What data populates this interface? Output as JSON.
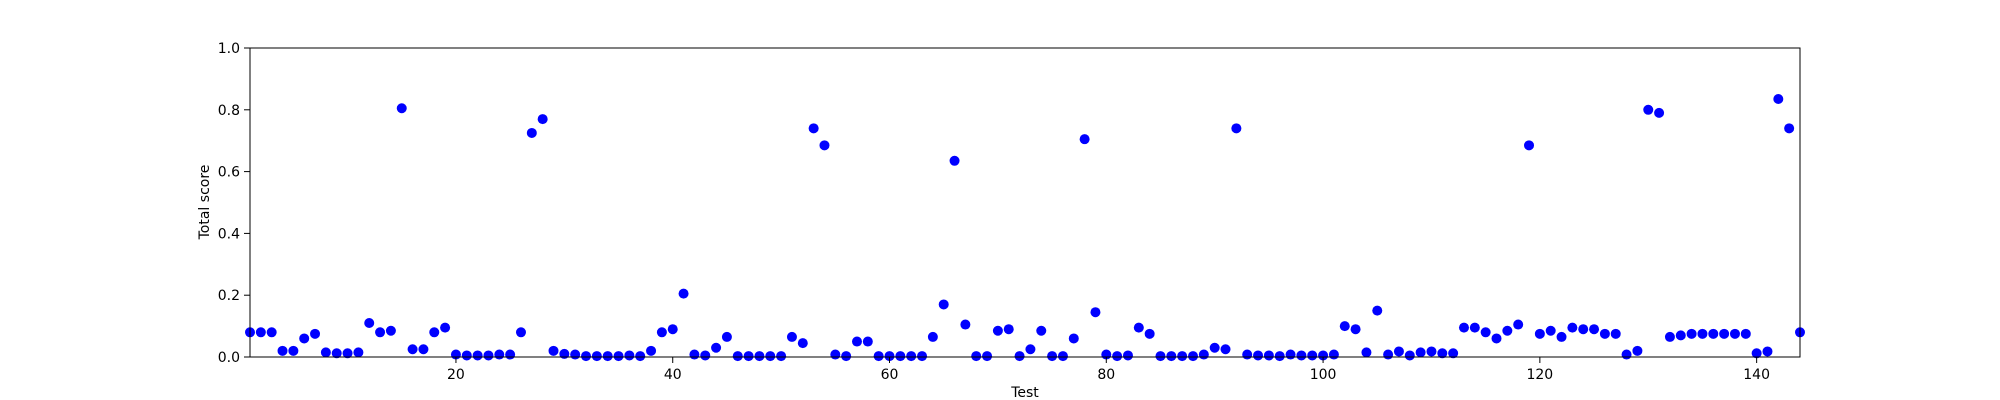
{
  "chart_data": {
    "type": "scatter",
    "title": "",
    "xlabel": "Test",
    "ylabel": "Total score",
    "xlim": [
      1,
      144
    ],
    "ylim": [
      0.0,
      1.0
    ],
    "xticks": [
      20,
      40,
      60,
      80,
      100,
      120,
      140
    ],
    "yticks": [
      0.0,
      0.2,
      0.4,
      0.6,
      0.8,
      1.0
    ],
    "xtick_labels": [
      "20",
      "40",
      "60",
      "80",
      "100",
      "120",
      "140"
    ],
    "ytick_labels": [
      "0.0",
      "0.2",
      "0.4",
      "0.6",
      "0.8",
      "1.0"
    ],
    "grid": false,
    "marker_color": "#0000ff",
    "x": [
      1,
      2,
      3,
      4,
      5,
      6,
      7,
      8,
      9,
      10,
      11,
      12,
      13,
      14,
      15,
      16,
      17,
      18,
      19,
      20,
      21,
      22,
      23,
      24,
      25,
      26,
      27,
      28,
      29,
      30,
      31,
      32,
      33,
      34,
      35,
      36,
      37,
      38,
      39,
      40,
      41,
      42,
      43,
      44,
      45,
      46,
      47,
      48,
      49,
      50,
      51,
      52,
      53,
      54,
      55,
      56,
      57,
      58,
      59,
      60,
      61,
      62,
      63,
      64,
      65,
      66,
      67,
      68,
      69,
      70,
      71,
      72,
      73,
      74,
      75,
      76,
      77,
      78,
      79,
      80,
      81,
      82,
      83,
      84,
      85,
      86,
      87,
      88,
      89,
      90,
      91,
      92,
      93,
      94,
      95,
      96,
      97,
      98,
      99,
      100,
      101,
      102,
      103,
      104,
      105,
      106,
      107,
      108,
      109,
      110,
      111,
      112,
      113,
      114,
      115,
      116,
      117,
      118,
      119,
      120,
      121,
      122,
      123,
      124,
      125,
      126,
      127,
      128,
      129,
      130,
      131,
      132,
      133,
      134,
      135,
      136,
      137,
      138,
      139,
      140,
      141,
      142,
      143,
      144
    ],
    "y": [
      0.08,
      0.08,
      0.08,
      0.02,
      0.02,
      0.06,
      0.075,
      0.015,
      0.012,
      0.012,
      0.015,
      0.11,
      0.08,
      0.085,
      0.805,
      0.025,
      0.025,
      0.08,
      0.095,
      0.008,
      0.005,
      0.005,
      0.005,
      0.008,
      0.008,
      0.08,
      0.725,
      0.77,
      0.02,
      0.01,
      0.008,
      0.003,
      0.003,
      0.003,
      0.003,
      0.005,
      0.003,
      0.02,
      0.08,
      0.09,
      0.205,
      0.008,
      0.005,
      0.03,
      0.065,
      0.003,
      0.003,
      0.003,
      0.003,
      0.003,
      0.065,
      0.045,
      0.74,
      0.685,
      0.008,
      0.003,
      0.05,
      0.05,
      0.003,
      0.003,
      0.003,
      0.003,
      0.003,
      0.065,
      0.17,
      0.635,
      0.105,
      0.003,
      0.003,
      0.085,
      0.09,
      0.003,
      0.025,
      0.085,
      0.003,
      0.003,
      0.06,
      0.705,
      0.145,
      0.008,
      0.003,
      0.005,
      0.095,
      0.075,
      0.003,
      0.003,
      0.003,
      0.003,
      0.008,
      0.03,
      0.025,
      0.74,
      0.008,
      0.005,
      0.005,
      0.003,
      0.008,
      0.005,
      0.005,
      0.005,
      0.008,
      0.1,
      0.09,
      0.015,
      0.15,
      0.008,
      0.018,
      0.005,
      0.015,
      0.018,
      0.012,
      0.012,
      0.095,
      0.095,
      0.08,
      0.06,
      0.085,
      0.105,
      0.685,
      0.075,
      0.085,
      0.065,
      0.095,
      0.09,
      0.09,
      0.075,
      0.075,
      0.008,
      0.02,
      0.8,
      0.79,
      0.065,
      0.07,
      0.075,
      0.075,
      0.075,
      0.075,
      0.075,
      0.075,
      0.012,
      0.018,
      0.835,
      0.74,
      0.08
    ]
  }
}
